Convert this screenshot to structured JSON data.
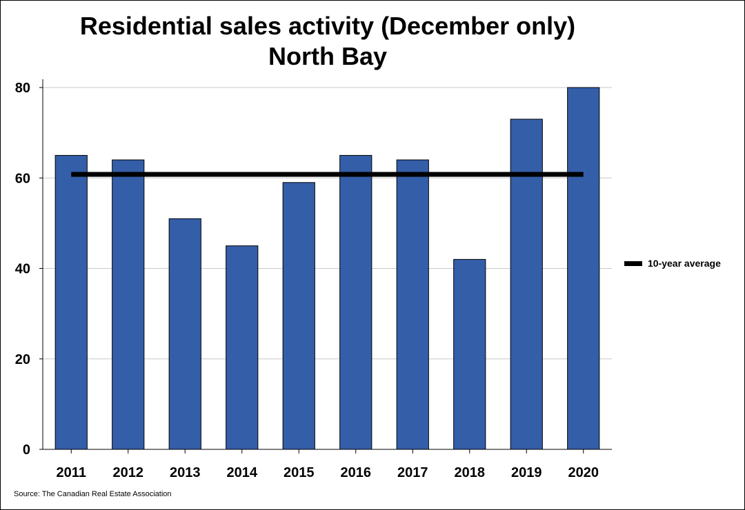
{
  "chart_data": {
    "type": "bar",
    "title": "Residential sales activity (December only)",
    "subtitle": "North Bay",
    "categories": [
      "2011",
      "2012",
      "2013",
      "2014",
      "2015",
      "2016",
      "2017",
      "2018",
      "2019",
      "2020"
    ],
    "series": [
      {
        "values": [
          65,
          64,
          51,
          45,
          59,
          65,
          64,
          42,
          73,
          80
        ]
      }
    ],
    "reference_line": {
      "name": "10-year average",
      "value": 60.8
    },
    "ylim": [
      0,
      80
    ],
    "yticks": [
      "0",
      "20",
      "40",
      "60",
      "80"
    ],
    "xlabel": "",
    "ylabel": "",
    "grid": true,
    "legend_position": "right",
    "colors": {
      "bar": "#345EA8",
      "bar_edge": "#000000",
      "average_line": "#000000",
      "grid": "#c8c8c8"
    },
    "source": "Source: The Canadian Real Estate Association"
  }
}
